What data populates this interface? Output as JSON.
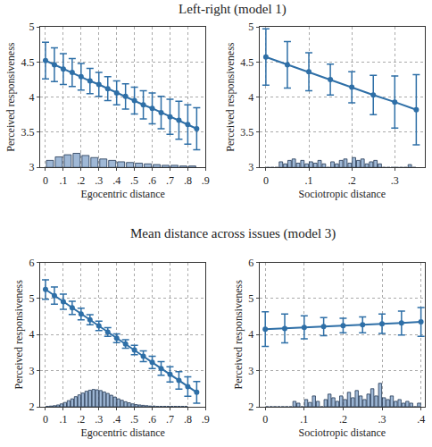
{
  "titles": [
    "Left-right (model 1)",
    "Mean distance across issues (model 3)"
  ],
  "chart_data": [
    {
      "type": "line",
      "x_label": "Egocentric distance",
      "y_label": "Perceived responsiveness",
      "color": "#2e6fa7",
      "marker": "circle",
      "grid": true,
      "x": [
        0,
        0.05,
        0.1,
        0.15,
        0.2,
        0.25,
        0.3,
        0.35,
        0.4,
        0.45,
        0.5,
        0.55,
        0.6,
        0.65,
        0.7,
        0.75,
        0.8,
        0.85
      ],
      "values": [
        4.52,
        4.46,
        4.4,
        4.35,
        4.29,
        4.23,
        4.18,
        4.12,
        4.06,
        4.01,
        3.95,
        3.89,
        3.84,
        3.78,
        3.72,
        3.67,
        3.61,
        3.55
      ],
      "error": [
        0.26,
        0.24,
        0.22,
        0.2,
        0.19,
        0.18,
        0.17,
        0.17,
        0.17,
        0.18,
        0.19,
        0.2,
        0.22,
        0.23,
        0.25,
        0.27,
        0.28,
        0.3
      ],
      "histogram": {
        "color": "#9fb8d6",
        "bins": [
          0,
          0.05,
          0.1,
          0.15,
          0.2,
          0.25,
          0.3,
          0.35,
          0.4,
          0.45,
          0.5,
          0.55,
          0.6,
          0.65,
          0.7,
          0.75,
          0.8,
          0.85
        ],
        "counts": [
          0.1,
          0.15,
          0.18,
          0.2,
          0.17,
          0.14,
          0.12,
          0.1,
          0.08,
          0.07,
          0.06,
          0.05,
          0.04,
          0.03,
          0.03,
          0.02,
          0.02
        ]
      },
      "xlim": [
        -0.03,
        0.9
      ],
      "xticks": [
        0,
        {
          "value": 0.1,
          "label": ".1"
        },
        {
          "value": 0.2,
          "label": ".2"
        },
        {
          "value": 0.3,
          "label": ".3"
        },
        {
          "value": 0.4,
          "label": ".4"
        },
        {
          "value": 0.5,
          "label": ".5"
        },
        {
          "value": 0.6,
          "label": ".6"
        },
        {
          "value": 0.7,
          "label": ".7"
        },
        {
          "value": 0.8,
          "label": ".8"
        },
        {
          "value": 0.9,
          "label": ".9"
        }
      ],
      "ylim": [
        3,
        5
      ],
      "yticks": [
        3,
        3.5,
        4,
        4.5,
        5
      ]
    },
    {
      "type": "line",
      "x_label": "Sociotropic distance",
      "y_label": "Perceived responsiveness",
      "color": "#2e6fa7",
      "marker": "circle",
      "grid": true,
      "x": [
        0,
        0.05,
        0.1,
        0.15,
        0.2,
        0.25,
        0.3,
        0.35
      ],
      "values": [
        4.57,
        4.46,
        4.36,
        4.25,
        4.14,
        4.03,
        3.93,
        3.82
      ],
      "error": [
        0.4,
        0.33,
        0.27,
        0.22,
        0.22,
        0.28,
        0.37,
        0.5
      ],
      "histogram": {
        "color": "#9fb8d6",
        "bins": [
          0,
          0.01,
          0.02,
          0.03,
          0.04,
          0.05,
          0.06,
          0.07,
          0.08,
          0.09,
          0.1,
          0.11,
          0.12,
          0.13,
          0.14,
          0.15,
          0.16,
          0.17,
          0.18,
          0.19,
          0.2,
          0.21,
          0.22,
          0.23,
          0.24,
          0.25,
          0.26,
          0.27,
          0.28,
          0.29,
          0.3,
          0.31,
          0.32,
          0.33,
          0.34,
          0.35
        ],
        "counts": [
          0,
          0,
          0,
          0.08,
          0.05,
          0.1,
          0.12,
          0.06,
          0.1,
          0.05,
          0.08,
          0.06,
          0.1,
          0.05,
          0,
          0.08,
          0.05,
          0.1,
          0.12,
          0.06,
          0.14,
          0.1,
          0.12,
          0.05,
          0.08,
          0.1,
          0.05,
          0,
          0,
          0,
          0,
          0,
          0,
          0.04,
          0
        ]
      },
      "xlim": [
        -0.015,
        0.37
      ],
      "xticks": [
        0,
        {
          "value": 0.1,
          "label": ".1"
        },
        {
          "value": 0.2,
          "label": ".2"
        },
        {
          "value": 0.3,
          "label": ".3"
        }
      ],
      "ylim": [
        3,
        5
      ],
      "yticks": [
        3,
        3.5,
        4,
        4.5,
        5
      ]
    },
    {
      "type": "line",
      "x_label": "Egocentric distance",
      "y_label": "Perceived responsiveness",
      "color": "#2e6fa7",
      "marker": "circle",
      "grid": true,
      "x": [
        0,
        0.05,
        0.1,
        0.15,
        0.2,
        0.25,
        0.3,
        0.35,
        0.4,
        0.45,
        0.5,
        0.55,
        0.6,
        0.65,
        0.7,
        0.75,
        0.8,
        0.85
      ],
      "values": [
        5.25,
        5.08,
        4.91,
        4.74,
        4.57,
        4.41,
        4.24,
        4.07,
        3.9,
        3.74,
        3.57,
        3.4,
        3.23,
        3.06,
        2.9,
        2.73,
        2.56,
        2.4
      ],
      "error": [
        0.27,
        0.24,
        0.21,
        0.18,
        0.16,
        0.14,
        0.13,
        0.12,
        0.12,
        0.12,
        0.13,
        0.15,
        0.17,
        0.19,
        0.21,
        0.24,
        0.27,
        0.3
      ],
      "histogram": {
        "color": "#9fb8d6",
        "bins": [
          0,
          0.02,
          0.04,
          0.06,
          0.08,
          0.1,
          0.12,
          0.14,
          0.16,
          0.18,
          0.2,
          0.22,
          0.24,
          0.26,
          0.28,
          0.3,
          0.32,
          0.34,
          0.36,
          0.38,
          0.4,
          0.42,
          0.44,
          0.46,
          0.48,
          0.5,
          0.52,
          0.54,
          0.56,
          0.58,
          0.6,
          0.62,
          0.64,
          0.66,
          0.68,
          0.7,
          0.72,
          0.74,
          0.76,
          0.78,
          0.8
        ],
        "counts": [
          0.01,
          0.02,
          0.03,
          0.05,
          0.08,
          0.12,
          0.17,
          0.22,
          0.28,
          0.33,
          0.38,
          0.43,
          0.46,
          0.48,
          0.47,
          0.45,
          0.41,
          0.37,
          0.32,
          0.27,
          0.22,
          0.18,
          0.14,
          0.11,
          0.08,
          0.06,
          0.05,
          0.04,
          0.03,
          0.02,
          0.02,
          0.01,
          0.01,
          0.01,
          0.01,
          0.01,
          0.01,
          0.01,
          0.01,
          0.01
        ]
      },
      "xlim": [
        -0.03,
        0.9
      ],
      "xticks": [
        0,
        {
          "value": 0.1,
          "label": ".1"
        },
        {
          "value": 0.2,
          "label": ".2"
        },
        {
          "value": 0.3,
          "label": ".3"
        },
        {
          "value": 0.4,
          "label": ".4"
        },
        {
          "value": 0.5,
          "label": ".5"
        },
        {
          "value": 0.6,
          "label": ".6"
        },
        {
          "value": 0.7,
          "label": ".7"
        },
        {
          "value": 0.8,
          "label": ".8"
        },
        {
          "value": 0.9,
          "label": ".9"
        }
      ],
      "ylim": [
        2,
        6
      ],
      "yticks": [
        2,
        3,
        4,
        5,
        6
      ]
    },
    {
      "type": "line",
      "x_label": "Sociotropic distance",
      "y_label": "Perceived responsiveness",
      "color": "#2e6fa7",
      "marker": "circle",
      "grid": true,
      "x": [
        0,
        0.05,
        0.1,
        0.15,
        0.2,
        0.25,
        0.3,
        0.35,
        0.4
      ],
      "values": [
        4.15,
        4.17,
        4.2,
        4.22,
        4.25,
        4.27,
        4.3,
        4.32,
        4.35
      ],
      "error": [
        0.48,
        0.4,
        0.32,
        0.25,
        0.2,
        0.22,
        0.27,
        0.33,
        0.4
      ],
      "histogram": {
        "color": "#9fb8d6",
        "bins": [
          0,
          0.01,
          0.02,
          0.03,
          0.04,
          0.05,
          0.06,
          0.07,
          0.08,
          0.09,
          0.1,
          0.11,
          0.12,
          0.13,
          0.14,
          0.15,
          0.16,
          0.17,
          0.18,
          0.19,
          0.2,
          0.21,
          0.22,
          0.23,
          0.24,
          0.25,
          0.26,
          0.27,
          0.28,
          0.29,
          0.3,
          0.31,
          0.32,
          0.33,
          0.34,
          0.35,
          0.36,
          0.37,
          0.38,
          0.39,
          0.4
        ],
        "counts": [
          0,
          0,
          0,
          0,
          0,
          0,
          0,
          0.15,
          0.1,
          0,
          0.2,
          0.12,
          0.3,
          0.15,
          0,
          0.2,
          0.35,
          0.25,
          0.15,
          0.3,
          0.2,
          0.4,
          0.25,
          0.45,
          0.3,
          0.2,
          0.35,
          0.5,
          0.3,
          0.65,
          0.25,
          0.2,
          0.3,
          0.15,
          0.2,
          0.1,
          0.15,
          0.1,
          0,
          0.1
        ]
      },
      "xlim": [
        -0.015,
        0.41
      ],
      "xticks": [
        0,
        {
          "value": 0.1,
          "label": ".1"
        },
        {
          "value": 0.2,
          "label": ".2"
        },
        {
          "value": 0.3,
          "label": ".3"
        },
        {
          "value": 0.4,
          "label": ".4"
        }
      ],
      "ylim": [
        2,
        6
      ],
      "yticks": [
        2,
        3,
        4,
        5,
        6
      ]
    }
  ]
}
